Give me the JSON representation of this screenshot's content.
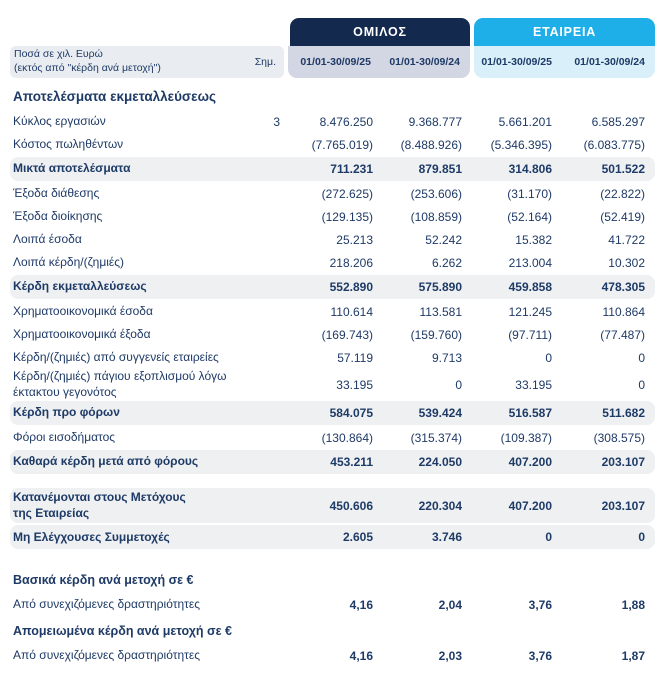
{
  "colors": {
    "navy_header": "#14294e",
    "cyan_header": "#1fafe8",
    "group_period_band": "#d3d6e3",
    "company_period_band": "#d9f0fb",
    "units_box": "#e9ecf0",
    "subtotal_stripe": "#eef0f2",
    "text": "#1e3a66"
  },
  "header": {
    "group_label": "ΟΜΙΛΟΣ",
    "company_label": "ΕΤΑΙΡΕΙΑ",
    "units_note": "Ποσά σε χιλ. Ευρώ\n(εκτός από \"κέρδη ανά μετοχή\")",
    "note_column_label": "Σημ.",
    "periods": [
      "01/01-30/09/25",
      "01/01-30/09/24",
      "01/01-30/09/25",
      "01/01-30/09/24"
    ]
  },
  "rows": [
    {
      "type": "heading",
      "size": "lg",
      "gap_before": 8,
      "label": "Αποτελέσματα εκμεταλλεύσεως"
    },
    {
      "type": "item",
      "label": "Κύκλος εργασιών",
      "note": "3",
      "values": [
        "8.476.250",
        "9.368.777",
        "5.661.201",
        "6.585.297"
      ]
    },
    {
      "type": "item",
      "label": "Κόστος πωληθέντων",
      "values": [
        "(7.765.019)",
        "(8.488.926)",
        "(5.346.395)",
        "(6.083.775)"
      ]
    },
    {
      "type": "total",
      "label": "Μικτά αποτελέσματα",
      "values": [
        "711.231",
        "879.851",
        "314.806",
        "501.522"
      ]
    },
    {
      "type": "item",
      "label": "Έξοδα διάθεσης",
      "values": [
        "(272.625)",
        "(253.606)",
        "(31.170)",
        "(22.822)"
      ]
    },
    {
      "type": "item",
      "label": "Έξοδα διοίκησης",
      "values": [
        "(129.135)",
        "(108.859)",
        "(52.164)",
        "(52.419)"
      ]
    },
    {
      "type": "item",
      "label": "Λοιπά έσοδα",
      "values": [
        "25.213",
        "52.242",
        "15.382",
        "41.722"
      ]
    },
    {
      "type": "item",
      "label": "Λοιπά κέρδη/(ζημιές)",
      "values": [
        "218.206",
        "6.262",
        "213.004",
        "10.302"
      ]
    },
    {
      "type": "total",
      "label": "Κέρδη εκμεταλλεύσεως",
      "values": [
        "552.890",
        "575.890",
        "459.858",
        "478.305"
      ]
    },
    {
      "type": "item",
      "label": "Χρηματοοικονομικά έσοδα",
      "values": [
        "110.614",
        "113.581",
        "121.245",
        "110.864"
      ]
    },
    {
      "type": "item",
      "label": "Χρηματοοικονομικά έξοδα",
      "values": [
        "(169.743)",
        "(159.760)",
        "(97.711)",
        "(77.487)"
      ]
    },
    {
      "type": "item",
      "label": "Κέρδη/(ζημιές) από συγγενείς εταιρείες",
      "values": [
        "57.119",
        "9.713",
        "0",
        "0"
      ]
    },
    {
      "type": "item",
      "label": "Κέρδη/(ζημιές) πάγιου εξοπλισμού λόγω\nέκτακτου γεγονότος",
      "values": [
        "33.195",
        "0",
        "33.195",
        "0"
      ]
    },
    {
      "type": "total",
      "label": "Κέρδη προ φόρων",
      "values": [
        "584.075",
        "539.424",
        "516.587",
        "511.682"
      ]
    },
    {
      "type": "item",
      "label": "Φόροι εισοδήματος",
      "values": [
        "(130.864)",
        "(315.374)",
        "(109.387)",
        "(308.575)"
      ]
    },
    {
      "type": "total",
      "label": "Καθαρά κέρδη μετά από φόρους",
      "values": [
        "453.211",
        "224.050",
        "407.200",
        "203.107"
      ]
    },
    {
      "type": "total",
      "gap_before": 14,
      "label": "Κατανέμονται στους Μετόχους\nτης Εταιρείας",
      "values": [
        "450.606",
        "220.304",
        "407.200",
        "203.107"
      ]
    },
    {
      "type": "total",
      "gap_before": 2,
      "label": "Μη Ελέγχουσες Συμμετοχές",
      "values": [
        "2.605",
        "3.746",
        "0",
        "0"
      ]
    },
    {
      "type": "heading",
      "gap_before": 20,
      "label": "Βασικά κέρδη ανά μετοχή σε €"
    },
    {
      "type": "item",
      "bold_values": true,
      "label": "Από συνεχιζόμενες δραστηριότητες",
      "values": [
        "4,16",
        "2,04",
        "3,76",
        "1,88"
      ]
    },
    {
      "type": "heading",
      "label": "Απομειωμένα κέρδη ανά μετοχή σε €"
    },
    {
      "type": "item",
      "bold_values": true,
      "label": "Από συνεχιζόμενες δραστηριότητες",
      "values": [
        "4,16",
        "2,03",
        "3,76",
        "1,87"
      ]
    }
  ]
}
